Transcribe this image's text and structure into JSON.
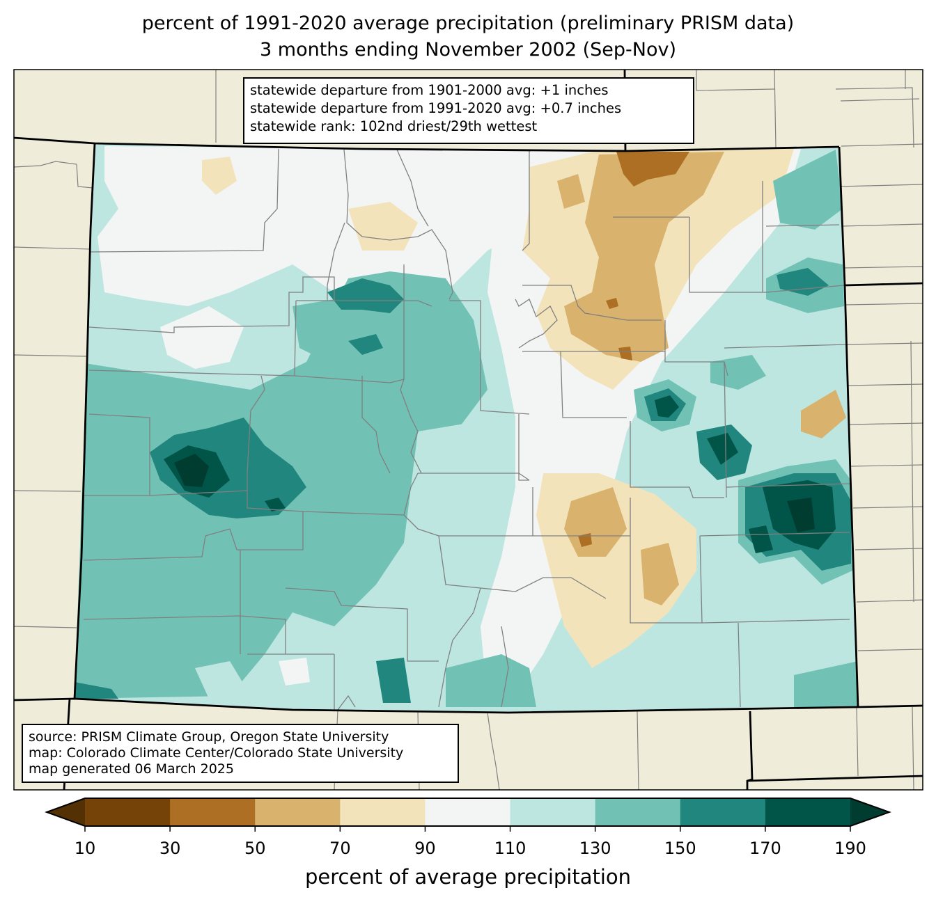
{
  "title": {
    "line1": "percent of 1991-2020 average precipitation (preliminary PRISM data)",
    "line2": "3 months ending November 2002 (Sep-Nov)"
  },
  "stats_box": {
    "line1": "statewide departure from 1901-2000 avg: +1 inches",
    "line2": "statewide departure from 1991-2020 avg: +0.7 inches",
    "line3": "statewide rank: 102nd driest/29th wettest"
  },
  "source_box": {
    "line1": "source: PRISM Climate Group, Oregon State University",
    "line2": "map: Colorado Climate Center/Colorado State University",
    "line3": "map generated 06 March 2025"
  },
  "colorbar": {
    "label": "percent of average precipitation",
    "ticks": [
      "10",
      "30",
      "50",
      "70",
      "90",
      "110",
      "130",
      "150",
      "170",
      "190"
    ],
    "under_color": "#543005",
    "over_color": "#003c30",
    "bins": [
      {
        "min": 10,
        "max": 30,
        "color": "#754308"
      },
      {
        "min": 30,
        "max": 50,
        "color": "#ac6f24"
      },
      {
        "min": 50,
        "max": 70,
        "color": "#d9b36e"
      },
      {
        "min": 70,
        "max": 90,
        "color": "#f3e3bb"
      },
      {
        "min": 90,
        "max": 110,
        "color": "#f3f5f4"
      },
      {
        "min": 110,
        "max": 130,
        "color": "#bde6e1"
      },
      {
        "min": 130,
        "max": 150,
        "color": "#72c1b5"
      },
      {
        "min": 150,
        "max": 170,
        "color": "#21867d"
      },
      {
        "min": 170,
        "max": 190,
        "color": "#015448"
      }
    ]
  },
  "map_colors": {
    "land": "#efecda",
    "county_line": "#808080",
    "state_line": "#000000"
  }
}
